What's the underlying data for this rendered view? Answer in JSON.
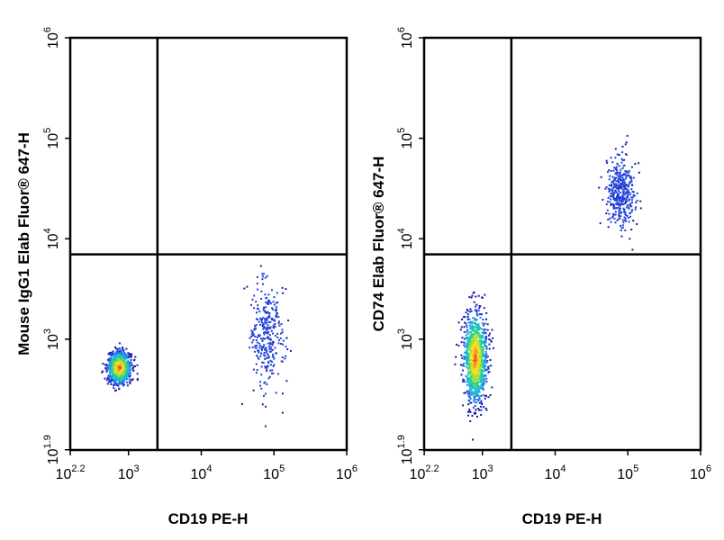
{
  "chart_data": [
    {
      "type": "scatter",
      "xlabel": "CD19 PE-H",
      "ylabel": "Mouse IgG1 Elab Fluor® 647-H",
      "x_scale": "log",
      "y_scale": "log",
      "xlim": [
        158,
        1000000
      ],
      "ylim": [
        79,
        1000000
      ],
      "x_ticks": [
        {
          "base": "10",
          "exp": "2.2"
        },
        {
          "base": "10",
          "exp": "3"
        },
        {
          "base": "10",
          "exp": "4"
        },
        {
          "base": "10",
          "exp": "5"
        },
        {
          "base": "10",
          "exp": "6"
        }
      ],
      "y_ticks": [
        {
          "base": "10",
          "exp": "1.9"
        },
        {
          "base": "10",
          "exp": "3"
        },
        {
          "base": "10",
          "exp": "4"
        },
        {
          "base": "10",
          "exp": "5"
        },
        {
          "base": "10",
          "exp": "6"
        }
      ],
      "quadrant_gate": {
        "x": 2500,
        "y": 7000
      },
      "grid": false,
      "populations": [
        {
          "name": "main",
          "center": [
            750,
            520
          ],
          "spread": [
            0.08,
            0.08
          ],
          "count": 900
        },
        {
          "name": "cd19-positive",
          "center": [
            80000,
            1100
          ],
          "spread": [
            0.12,
            0.28
          ],
          "count": 320
        }
      ]
    },
    {
      "type": "scatter",
      "xlabel": "CD19 PE-H",
      "ylabel": "CD74 Elab Fluor® 647-H",
      "x_scale": "log",
      "y_scale": "log",
      "xlim": [
        158,
        1000000
      ],
      "ylim": [
        79,
        1000000
      ],
      "x_ticks": [
        {
          "base": "10",
          "exp": "2.2"
        },
        {
          "base": "10",
          "exp": "3"
        },
        {
          "base": "10",
          "exp": "4"
        },
        {
          "base": "10",
          "exp": "5"
        },
        {
          "base": "10",
          "exp": "6"
        }
      ],
      "y_ticks": [
        {
          "base": "10",
          "exp": "1.9"
        },
        {
          "base": "10",
          "exp": "3"
        },
        {
          "base": "10",
          "exp": "4"
        },
        {
          "base": "10",
          "exp": "5"
        },
        {
          "base": "10",
          "exp": "6"
        }
      ],
      "quadrant_gate": {
        "x": 2500,
        "y": 7000
      },
      "grid": false,
      "populations": [
        {
          "name": "main",
          "center": [
            800,
            650
          ],
          "spread": [
            0.08,
            0.22
          ],
          "count": 1200
        },
        {
          "name": "cd19-cd74-positive",
          "center": [
            80000,
            30000
          ],
          "spread": [
            0.1,
            0.18
          ],
          "count": 380
        }
      ]
    }
  ]
}
